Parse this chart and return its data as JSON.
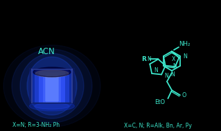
{
  "background_color": "#000000",
  "cyan_color": "#3de8cc",
  "caption_left": "X=N; R=3-NH₂ Ph",
  "caption_right": "X=C, N; R=Alk, Bn, Ar, Py",
  "caption_color": "#3de8cc",
  "acn_text": "ACN",
  "figsize": [
    3.19,
    1.89
  ],
  "dpi": 100
}
